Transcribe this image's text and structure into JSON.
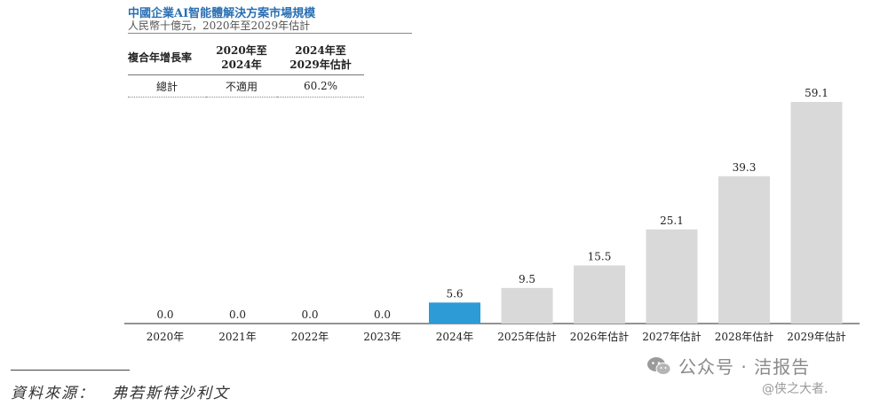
{
  "header": {
    "title": "中國企業AI智能體解決方案市場規模",
    "subtitle": "人民幣十億元，2020年至2029年估計"
  },
  "cagr_table": {
    "row_header": "複合年增長率",
    "col1_line1": "2020年至",
    "col1_line2": "2024年",
    "col2_line1": "2024年至",
    "col2_line2": "2029年估計",
    "row_label": "總計",
    "col1_value": "不適用",
    "col2_value": "60.2%"
  },
  "chart_data": {
    "type": "bar",
    "title": "中國企業AI智能體解決方案市場規模",
    "subtitle": "人民幣十億元，2020年至2029年估計",
    "categories": [
      "2020年",
      "2021年",
      "2022年",
      "2023年",
      "2024年",
      "2025年估計",
      "2026年估計",
      "2027年估計",
      "2028年估計",
      "2029年估計"
    ],
    "values": [
      0.0,
      0.0,
      0.0,
      0.0,
      5.6,
      9.5,
      15.5,
      25.1,
      39.3,
      59.1
    ],
    "data_labels": [
      "0.0",
      "0.0",
      "0.0",
      "0.0",
      "5.6",
      "9.5",
      "15.5",
      "25.1",
      "39.3",
      "59.1"
    ],
    "highlight_index": 4,
    "colors": {
      "default": "#d9d9d9",
      "highlight": "#2c9bd6"
    },
    "ylim": [
      0,
      59.1
    ],
    "grid": false,
    "legend": "none"
  },
  "footer": {
    "source": "資料來源：　弗若斯特沙利文"
  },
  "watermark": {
    "icon": "wechat-icon",
    "main": "公众号 · 洁报告",
    "handle": "@侠之大者."
  }
}
